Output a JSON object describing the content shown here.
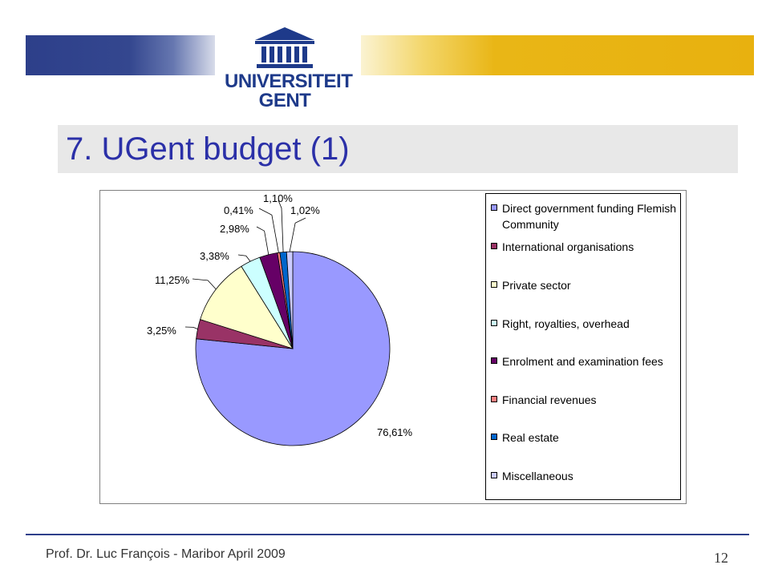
{
  "slide": {
    "logo_line1": "UNIVERSITEIT",
    "logo_line2": "GENT",
    "title": "7. UGent budget (1)",
    "footer": "Prof. Dr. Luc François - Maribor April 2009",
    "page_number": "12"
  },
  "colors": {
    "banner_blue": "#2d3f8a",
    "banner_gold": "#e8b10f",
    "title_text": "#2b30a8",
    "title_band": "#e8e8e8"
  },
  "chart_data": {
    "type": "pie",
    "start_angle_deg": 90,
    "direction": "clockwise",
    "legend_position": "right",
    "categories": [
      "Direct government funding Flemish Community",
      "International organisations",
      "Private sector",
      "Right, royalties, overhead",
      "Enrolment and examination fees",
      "Financial revenues",
      "Real estate",
      "Miscellaneous"
    ],
    "values": [
      76.61,
      3.25,
      11.25,
      3.38,
      2.98,
      0.41,
      1.1,
      1.02
    ],
    "labels": [
      "76,61%",
      "3,25%",
      "11,25%",
      "3,38%",
      "2,98%",
      "0,41%",
      "1,10%",
      "1,02%"
    ],
    "colors": [
      "#9999ff",
      "#993366",
      "#ffffcc",
      "#ccffff",
      "#660066",
      "#ff8080",
      "#0066cc",
      "#ccccff"
    ]
  }
}
